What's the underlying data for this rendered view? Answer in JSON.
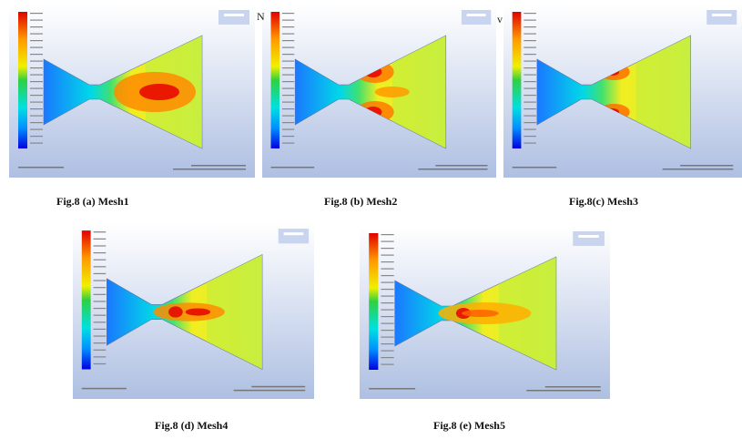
{
  "figures": [
    {
      "caption": "Fig.8 (a) Mesh1"
    },
    {
      "caption": "Fig.8 (b) Mesh2"
    },
    {
      "caption": "Fig.8(c) Mesh3"
    },
    {
      "caption": "Fig.8 (d) Mesh4"
    },
    {
      "caption": "Fig.8 (e) Mesh5"
    }
  ],
  "stray_marks": [
    "N",
    "v"
  ]
}
